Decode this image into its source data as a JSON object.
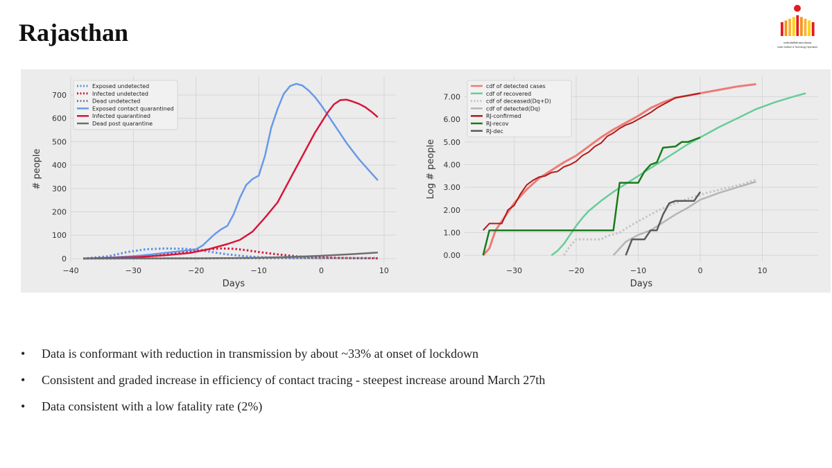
{
  "slide": {
    "title": "Rajasthan"
  },
  "logo": {
    "line1": "भारतीय प्रौद्योगिकी संस्थान हैदराबाद",
    "line2": "Indian Institute of Technology Hyderabad",
    "colors": [
      "#e31b23",
      "#f7941d",
      "#fcb040",
      "#ffd200"
    ]
  },
  "chart_data": [
    {
      "type": "line",
      "xlabel": "Days",
      "ylabel": "# people",
      "xlim": [
        -40,
        12
      ],
      "ylim": [
        -15,
        780
      ],
      "xticks": [
        -40,
        -30,
        -20,
        -10,
        0,
        10
      ],
      "xtick_labels": [
        "−40",
        "−30",
        "−20",
        "−10",
        "0",
        "10"
      ],
      "yticks": [
        0,
        100,
        200,
        300,
        400,
        500,
        600,
        700
      ],
      "grid": true,
      "legend_placement": "top-left",
      "series": [
        {
          "name": "Exposed undetected",
          "color": "#5b8fe6",
          "dash": "dotted",
          "points": [
            [
              -38,
              0
            ],
            [
              -34,
              10
            ],
            [
              -31,
              28
            ],
            [
              -28,
              40
            ],
            [
              -25,
              43
            ],
            [
              -22,
              42
            ],
            [
              -20,
              38
            ],
            [
              -18,
              30
            ],
            [
              -15,
              18
            ],
            [
              -12,
              10
            ],
            [
              -10,
              6
            ],
            [
              -5,
              3
            ],
            [
              0,
              2
            ],
            [
              5,
              2
            ],
            [
              9,
              1
            ]
          ]
        },
        {
          "name": "Infected undetected",
          "color": "#d6163a",
          "dash": "dotted",
          "points": [
            [
              -38,
              0
            ],
            [
              -33,
              5
            ],
            [
              -28,
              13
            ],
            [
              -24,
              22
            ],
            [
              -20,
              32
            ],
            [
              -18,
              40
            ],
            [
              -16,
              43
            ],
            [
              -14,
              42
            ],
            [
              -12,
              36
            ],
            [
              -10,
              28
            ],
            [
              -7,
              18
            ],
            [
              -4,
              10
            ],
            [
              0,
              5
            ],
            [
              5,
              2
            ],
            [
              9,
              1
            ]
          ]
        },
        {
          "name": "Dead undetected",
          "color": "#7f7f7f",
          "dash": "dotted",
          "points": [
            [
              -38,
              0
            ],
            [
              -20,
              1
            ],
            [
              0,
              2
            ],
            [
              9,
              2
            ]
          ]
        },
        {
          "name": "Exposed contact quarantined",
          "color": "#6699e8",
          "dash": "solid",
          "points": [
            [
              -38,
              0
            ],
            [
              -34,
              4
            ],
            [
              -30,
              10
            ],
            [
              -27,
              18
            ],
            [
              -24,
              27
            ],
            [
              -22,
              33
            ],
            [
              -20,
              40
            ],
            [
              -19,
              55
            ],
            [
              -18,
              80
            ],
            [
              -17,
              105
            ],
            [
              -16,
              125
            ],
            [
              -15,
              140
            ],
            [
              -14,
              190
            ],
            [
              -13,
              260
            ],
            [
              -12,
              315
            ],
            [
              -11,
              340
            ],
            [
              -10,
              355
            ],
            [
              -9,
              440
            ],
            [
              -8,
              560
            ],
            [
              -7,
              640
            ],
            [
              -6,
              705
            ],
            [
              -5,
              738
            ],
            [
              -4,
              748
            ],
            [
              -3,
              740
            ],
            [
              -2,
              718
            ],
            [
              -1,
              690
            ],
            [
              0,
              655
            ],
            [
              1,
              615
            ],
            [
              2,
              575
            ],
            [
              3,
              535
            ],
            [
              4,
              495
            ],
            [
              5,
              460
            ],
            [
              6,
              425
            ],
            [
              7,
              395
            ],
            [
              8,
              365
            ],
            [
              9,
              335
            ]
          ]
        },
        {
          "name": "Infected quarantined",
          "color": "#d6163a",
          "dash": "solid",
          "points": [
            [
              -38,
              0
            ],
            [
              -33,
              3
            ],
            [
              -29,
              7
            ],
            [
              -25,
              14
            ],
            [
              -21,
              24
            ],
            [
              -18,
              40
            ],
            [
              -15,
              62
            ],
            [
              -13,
              80
            ],
            [
              -11,
              115
            ],
            [
              -9,
              175
            ],
            [
              -7,
              240
            ],
            [
              -5,
              340
            ],
            [
              -3,
              440
            ],
            [
              -1,
              540
            ],
            [
              1,
              625
            ],
            [
              2,
              660
            ],
            [
              3,
              678
            ],
            [
              4,
              680
            ],
            [
              5,
              672
            ],
            [
              6,
              662
            ],
            [
              7,
              648
            ],
            [
              8,
              628
            ],
            [
              9,
              605
            ]
          ]
        },
        {
          "name": "Dead post quarantine",
          "color": "#6e6e6e",
          "dash": "solid",
          "points": [
            [
              -38,
              0
            ],
            [
              -20,
              1
            ],
            [
              -10,
              3
            ],
            [
              -5,
              7
            ],
            [
              0,
              12
            ],
            [
              5,
              19
            ],
            [
              9,
              26
            ]
          ]
        }
      ]
    },
    {
      "type": "line",
      "xlabel": "Days",
      "ylabel": "Log # people",
      "xlim": [
        -38,
        19
      ],
      "ylim": [
        -0.3,
        7.9
      ],
      "xticks": [
        -30,
        -20,
        -10,
        0,
        10
      ],
      "xtick_labels": [
        "−30",
        "−20",
        "−10",
        "0",
        "10"
      ],
      "yticks": [
        0,
        1,
        2,
        3,
        4,
        5,
        6,
        7
      ],
      "ytick_labels": [
        "0.00",
        "1.00",
        "2.00",
        "3.00",
        "4.00",
        "5.00",
        "6.00",
        "7.00"
      ],
      "grid": true,
      "legend_placement": "top-left",
      "series": [
        {
          "name": "cdf of detected cases",
          "color": "#ee7a75",
          "dash": "solid",
          "width": 3,
          "points": [
            [
              -35,
              0
            ],
            [
              -34,
              0.3
            ],
            [
              -33,
              1.1
            ],
            [
              -32,
              1.5
            ],
            [
              -31,
              1.9
            ],
            [
              -30,
              2.3
            ],
            [
              -28,
              2.9
            ],
            [
              -26,
              3.4
            ],
            [
              -24,
              3.75
            ],
            [
              -22,
              4.1
            ],
            [
              -20,
              4.4
            ],
            [
              -18,
              4.8
            ],
            [
              -16,
              5.2
            ],
            [
              -14,
              5.55
            ],
            [
              -12,
              5.85
            ],
            [
              -10,
              6.15
            ],
            [
              -8,
              6.5
            ],
            [
              -6,
              6.75
            ],
            [
              -4,
              6.95
            ],
            [
              -2,
              7.05
            ],
            [
              0,
              7.15
            ],
            [
              3,
              7.3
            ],
            [
              6,
              7.45
            ],
            [
              9,
              7.55
            ]
          ]
        },
        {
          "name": "cdf of recovered",
          "color": "#66cc99",
          "dash": "solid",
          "width": 2.5,
          "points": [
            [
              -24,
              0
            ],
            [
              -23,
              0.2
            ],
            [
              -22,
              0.5
            ],
            [
              -21,
              0.9
            ],
            [
              -20,
              1.3
            ],
            [
              -19,
              1.65
            ],
            [
              -18,
              1.95
            ],
            [
              -16,
              2.4
            ],
            [
              -14,
              2.8
            ],
            [
              -12,
              3.15
            ],
            [
              -10,
              3.5
            ],
            [
              -8,
              3.85
            ],
            [
              -6,
              4.2
            ],
            [
              -4,
              4.55
            ],
            [
              -2,
              4.9
            ],
            [
              0,
              5.2
            ],
            [
              3,
              5.65
            ],
            [
              6,
              6.05
            ],
            [
              9,
              6.45
            ],
            [
              12,
              6.75
            ],
            [
              15,
              7.0
            ],
            [
              17,
              7.15
            ]
          ]
        },
        {
          "name": "cdf of deceased(Dq+D)",
          "color": "#c4c4c4",
          "dash": "dotted",
          "width": 3,
          "points": [
            [
              -22,
              0
            ],
            [
              -21,
              0.4
            ],
            [
              -20,
              0.7
            ],
            [
              -16,
              0.7
            ],
            [
              -15,
              0.85
            ],
            [
              -13,
              1.0
            ],
            [
              -11,
              1.35
            ],
            [
              -9,
              1.65
            ],
            [
              -7,
              1.95
            ],
            [
              -5,
              2.2
            ],
            [
              -2,
              2.5
            ],
            [
              1,
              2.75
            ],
            [
              4,
              2.95
            ],
            [
              7,
              3.15
            ],
            [
              9,
              3.35
            ]
          ]
        },
        {
          "name": "cdf of detected(Dq)",
          "color": "#b5b5b5",
          "dash": "solid",
          "width": 2.5,
          "points": [
            [
              -14,
              0
            ],
            [
              -13,
              0.3
            ],
            [
              -12,
              0.6
            ],
            [
              -11,
              0.75
            ],
            [
              -10,
              0.9
            ],
            [
              -8,
              1.1
            ],
            [
              -6,
              1.45
            ],
            [
              -4,
              1.8
            ],
            [
              -2,
              2.1
            ],
            [
              0,
              2.45
            ],
            [
              3,
              2.75
            ],
            [
              6,
              3.0
            ],
            [
              9,
              3.25
            ]
          ]
        },
        {
          "name": "RJ-confirmed",
          "color": "#b01b1b",
          "dash": "solid",
          "width": 2,
          "points": [
            [
              -35,
              1.1
            ],
            [
              -34,
              1.4
            ],
            [
              -33,
              1.4
            ],
            [
              -32,
              1.4
            ],
            [
              -31,
              2.0
            ],
            [
              -30,
              2.2
            ],
            [
              -29,
              2.7
            ],
            [
              -28,
              3.1
            ],
            [
              -27,
              3.3
            ],
            [
              -26,
              3.45
            ],
            [
              -25,
              3.5
            ],
            [
              -24,
              3.65
            ],
            [
              -23,
              3.7
            ],
            [
              -22,
              3.9
            ],
            [
              -21,
              4.0
            ],
            [
              -20,
              4.15
            ],
            [
              -19,
              4.4
            ],
            [
              -18,
              4.55
            ],
            [
              -17,
              4.8
            ],
            [
              -16,
              4.95
            ],
            [
              -15,
              5.25
            ],
            [
              -14,
              5.4
            ],
            [
              -13,
              5.6
            ],
            [
              -12,
              5.75
            ],
            [
              -11,
              5.85
            ],
            [
              -10,
              6.0
            ],
            [
              -9,
              6.15
            ],
            [
              -8,
              6.3
            ],
            [
              -7,
              6.5
            ],
            [
              -6,
              6.65
            ],
            [
              -5,
              6.8
            ],
            [
              -4,
              6.95
            ],
            [
              -3,
              7.0
            ],
            [
              -2,
              7.05
            ],
            [
              -1,
              7.1
            ],
            [
              0,
              7.15
            ]
          ]
        },
        {
          "name": "RJ-recov",
          "color": "#1a7a1a",
          "dash": "solid",
          "width": 2.5,
          "points": [
            [
              -35,
              0
            ],
            [
              -34,
              1.1
            ],
            [
              -14,
              1.1
            ],
            [
              -13,
              3.2
            ],
            [
              -10,
              3.2
            ],
            [
              -9,
              3.7
            ],
            [
              -8,
              4.0
            ],
            [
              -7,
              4.1
            ],
            [
              -6,
              4.75
            ],
            [
              -4,
              4.8
            ],
            [
              -3,
              5.0
            ],
            [
              -2,
              5.0
            ],
            [
              -1,
              5.1
            ],
            [
              0,
              5.2
            ]
          ]
        },
        {
          "name": "RJ-dec",
          "color": "#5a5a5a",
          "dash": "solid",
          "width": 2.5,
          "points": [
            [
              -12,
              0
            ],
            [
              -11,
              0.7
            ],
            [
              -9,
              0.7
            ],
            [
              -8,
              1.1
            ],
            [
              -7,
              1.1
            ],
            [
              -6,
              1.8
            ],
            [
              -5,
              2.3
            ],
            [
              -4,
              2.4
            ],
            [
              -1,
              2.4
            ],
            [
              0,
              2.8
            ]
          ]
        }
      ]
    }
  ],
  "bullets": [
    "Data is conformant with reduction in transmission by about ~33% at onset of lockdown",
    "Consistent and graded increase in efficiency of contact tracing - steepest increase around March 27th",
    "Data consistent with a low fatality rate (2%)"
  ],
  "bullet_symbol": "•"
}
